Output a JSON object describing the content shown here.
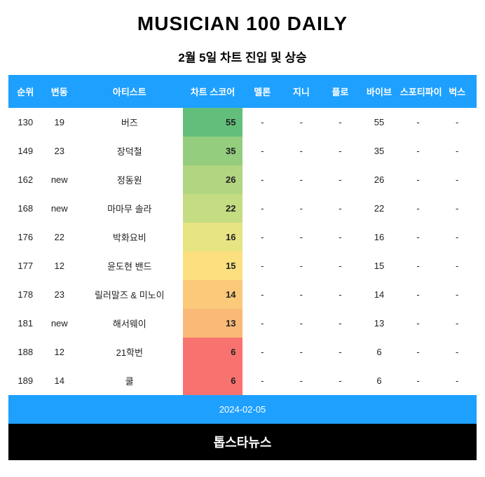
{
  "title": "MUSICIAN 100 DAILY",
  "subtitle": "2월 5일 차트 진입 및 상승",
  "date": "2024-02-05",
  "footer": "톱스타뉴스",
  "header_bg": "#1ea0ff",
  "header_fg": "#ffffff",
  "footer_bg": "#000000",
  "footer_fg": "#ffffff",
  "columns": [
    "순위",
    "변동",
    "아티스트",
    "차트 스코어",
    "멜론",
    "지니",
    "플로",
    "바이브",
    "스포티파이",
    "벅스"
  ],
  "score_colors": {
    "55": "#63be7b",
    "35": "#93cd7d",
    "26": "#b1d580",
    "22": "#c4dc82",
    "16": "#e7e483",
    "15": "#fcdf7f",
    "14": "#fbc97a",
    "13": "#fab977",
    "6": "#f8726f"
  },
  "rows": [
    {
      "rank": "130",
      "change": "19",
      "artist": "버즈",
      "score": "55",
      "melon": "-",
      "genie": "-",
      "flo": "-",
      "vibe": "55",
      "spotify": "-",
      "bugs": "-"
    },
    {
      "rank": "149",
      "change": "23",
      "artist": "장덕철",
      "score": "35",
      "melon": "-",
      "genie": "-",
      "flo": "-",
      "vibe": "35",
      "spotify": "-",
      "bugs": "-"
    },
    {
      "rank": "162",
      "change": "new",
      "artist": "정동원",
      "score": "26",
      "melon": "-",
      "genie": "-",
      "flo": "-",
      "vibe": "26",
      "spotify": "-",
      "bugs": "-"
    },
    {
      "rank": "168",
      "change": "new",
      "artist": "마마무 솔라",
      "score": "22",
      "melon": "-",
      "genie": "-",
      "flo": "-",
      "vibe": "22",
      "spotify": "-",
      "bugs": "-"
    },
    {
      "rank": "176",
      "change": "22",
      "artist": "박화요비",
      "score": "16",
      "melon": "-",
      "genie": "-",
      "flo": "-",
      "vibe": "16",
      "spotify": "-",
      "bugs": "-"
    },
    {
      "rank": "177",
      "change": "12",
      "artist": "윤도현 밴드",
      "score": "15",
      "melon": "-",
      "genie": "-",
      "flo": "-",
      "vibe": "15",
      "spotify": "-",
      "bugs": "-"
    },
    {
      "rank": "178",
      "change": "23",
      "artist": "릴러말즈 & 미노이",
      "score": "14",
      "melon": "-",
      "genie": "-",
      "flo": "-",
      "vibe": "14",
      "spotify": "-",
      "bugs": "-"
    },
    {
      "rank": "181",
      "change": "new",
      "artist": "해서웨이",
      "score": "13",
      "melon": "-",
      "genie": "-",
      "flo": "-",
      "vibe": "13",
      "spotify": "-",
      "bugs": "-"
    },
    {
      "rank": "188",
      "change": "12",
      "artist": "21학번",
      "score": "6",
      "melon": "-",
      "genie": "-",
      "flo": "-",
      "vibe": "6",
      "spotify": "-",
      "bugs": "-"
    },
    {
      "rank": "189",
      "change": "14",
      "artist": "쿨",
      "score": "6",
      "melon": "-",
      "genie": "-",
      "flo": "-",
      "vibe": "6",
      "spotify": "-",
      "bugs": "-"
    }
  ]
}
